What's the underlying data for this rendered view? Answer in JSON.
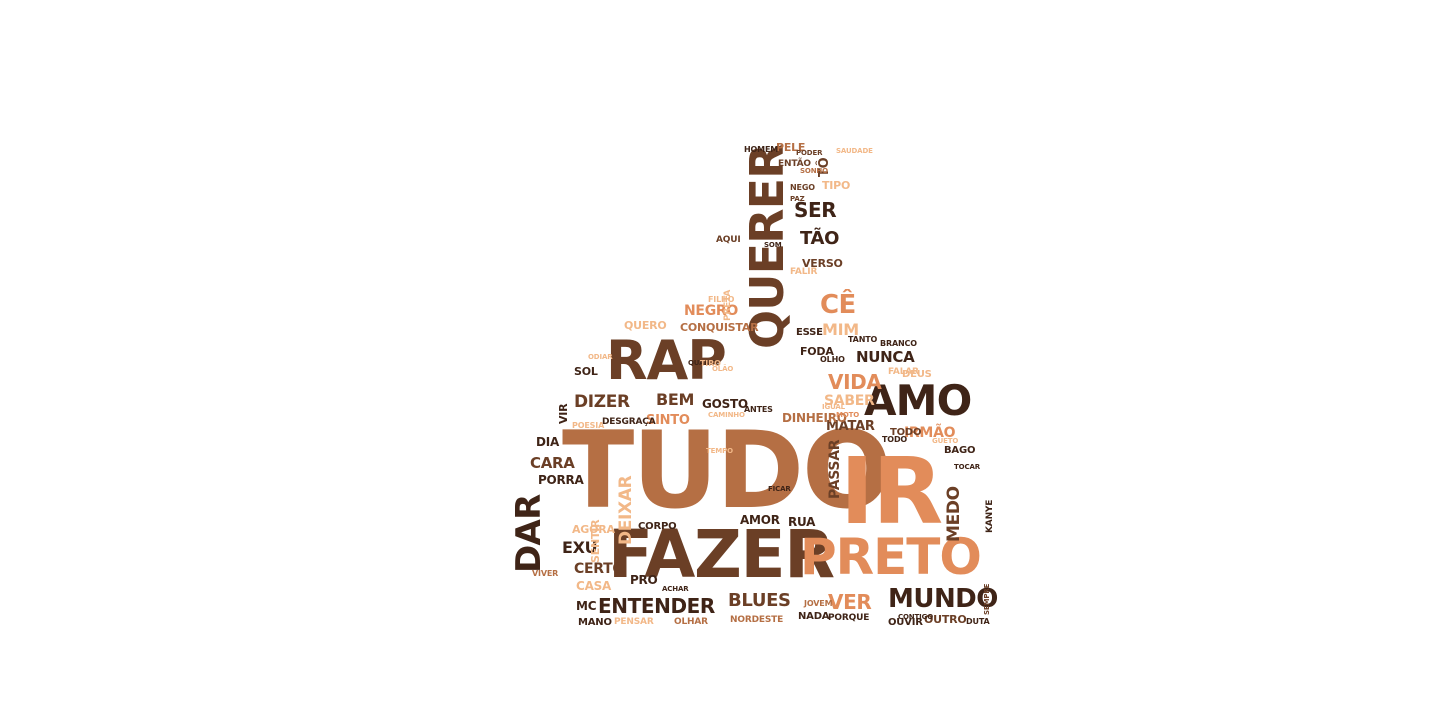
{
  "palette": {
    "dark": "#3f2417",
    "medium_dark": "#6b3f26",
    "medium": "#b56f44",
    "light": "#e28c5a",
    "pale": "#f2b888",
    "background": "#ffffff"
  },
  "words": [
    {
      "text": "TUDO",
      "color": "medium",
      "rotate": false
    },
    {
      "text": "iR",
      "color": "light",
      "rotate": false
    },
    {
      "text": "FAZER",
      "color": "medium_dark",
      "rotate": false
    },
    {
      "text": "PRETO",
      "color": "light",
      "rotate": false
    },
    {
      "text": "QUERER",
      "color": "medium_dark",
      "rotate": true
    },
    {
      "text": "RAP",
      "color": "medium_dark",
      "rotate": false
    },
    {
      "text": "AMO",
      "color": "dark",
      "rotate": false
    },
    {
      "text": "DAR",
      "color": "dark",
      "rotate": true
    },
    {
      "text": "MUNDO",
      "color": "dark",
      "rotate": false
    },
    {
      "text": "ENTENDER",
      "color": "dark",
      "rotate": false
    },
    {
      "text": "BLUES",
      "color": "medium_dark",
      "rotate": false
    },
    {
      "text": "VER",
      "color": "light",
      "rotate": false
    },
    {
      "text": "EXU",
      "color": "dark",
      "rotate": false
    },
    {
      "text": "CERTO",
      "color": "medium_dark",
      "rotate": false
    },
    {
      "text": "DIZER",
      "color": "medium_dark",
      "rotate": false
    },
    {
      "text": "BEM",
      "color": "medium_dark",
      "rotate": false
    },
    {
      "text": "CÊ",
      "color": "light",
      "rotate": false
    },
    {
      "text": "VIDA",
      "color": "light",
      "rotate": false
    },
    {
      "text": "MIM",
      "color": "pale",
      "rotate": false
    },
    {
      "text": "SER",
      "color": "dark",
      "rotate": false
    },
    {
      "text": "TÃO",
      "color": "dark",
      "rotate": false
    },
    {
      "text": "NUNCA",
      "color": "dark",
      "rotate": false
    },
    {
      "text": "SABER",
      "color": "pale",
      "rotate": false
    },
    {
      "text": "IRMÃO",
      "color": "light",
      "rotate": false
    },
    {
      "text": "MATAR",
      "color": "medium_dark",
      "rotate": false
    },
    {
      "text": "DINHEIRO",
      "color": "medium",
      "rotate": false
    },
    {
      "text": "SINTO",
      "color": "light",
      "rotate": false
    },
    {
      "text": "GOSTO",
      "color": "dark",
      "rotate": false
    },
    {
      "text": "NEGRO",
      "color": "light",
      "rotate": false
    },
    {
      "text": "CARA",
      "color": "medium_dark",
      "rotate": false
    },
    {
      "text": "PORRA",
      "color": "dark",
      "rotate": false
    },
    {
      "text": "DEIXAR",
      "color": "pale",
      "rotate": true
    },
    {
      "text": "MEDO",
      "color": "medium_dark",
      "rotate": true
    },
    {
      "text": "PASSAR",
      "color": "medium_dark",
      "rotate": true
    },
    {
      "text": "AMOR",
      "color": "dark",
      "rotate": false
    },
    {
      "text": "RUA",
      "color": "dark",
      "rotate": false
    },
    {
      "text": "OUTRO",
      "color": "medium_dark",
      "rotate": false
    },
    {
      "text": "CASA",
      "color": "pale",
      "rotate": false
    },
    {
      "text": "PRO",
      "color": "dark",
      "rotate": false
    },
    {
      "text": "MC",
      "color": "dark",
      "rotate": false
    },
    {
      "text": "FODA",
      "color": "dark",
      "rotate": false
    },
    {
      "text": "ESSE",
      "color": "dark",
      "rotate": false
    },
    {
      "text": "PELE",
      "color": "medium",
      "rotate": false
    },
    {
      "text": "TÔ",
      "color": "medium_dark",
      "rotate": true
    },
    {
      "text": "TIPO",
      "color": "pale",
      "rotate": false
    },
    {
      "text": "VERSO",
      "color": "medium_dark",
      "rotate": false
    },
    {
      "text": "FALIR",
      "color": "pale",
      "rotate": false
    },
    {
      "text": "DIA",
      "color": "dark",
      "rotate": false
    },
    {
      "text": "SOL",
      "color": "dark",
      "rotate": false
    },
    {
      "text": "VIR",
      "color": "dark",
      "rotate": true
    },
    {
      "text": "SENTIR",
      "color": "pale",
      "rotate": true
    },
    {
      "text": "AGORA",
      "color": "pale",
      "rotate": false
    },
    {
      "text": "CORPO",
      "color": "dark",
      "rotate": false
    },
    {
      "text": "TODO",
      "color": "medium_dark",
      "rotate": false
    },
    {
      "text": "DEUS",
      "color": "pale",
      "rotate": false
    },
    {
      "text": "BAGO",
      "color": "dark",
      "rotate": false
    },
    {
      "text": "QUERO",
      "color": "pale",
      "rotate": false
    },
    {
      "text": "CONQUISTAR",
      "color": "medium",
      "rotate": false
    },
    {
      "text": "AQUI",
      "color": "medium_dark",
      "rotate": false
    },
    {
      "text": "ENTÃO",
      "color": "medium_dark",
      "rotate": false
    },
    {
      "text": "HOMEM",
      "color": "dark",
      "rotate": false
    },
    {
      "text": "NEGO",
      "color": "medium_dark",
      "rotate": false
    },
    {
      "text": "MANO",
      "color": "dark",
      "rotate": false
    },
    {
      "text": "NADA",
      "color": "dark",
      "rotate": false
    },
    {
      "text": "OUVIR",
      "color": "dark",
      "rotate": false
    },
    {
      "text": "PORQUE",
      "color": "dark",
      "rotate": false
    },
    {
      "text": "NORDESTE",
      "color": "medium",
      "rotate": false
    },
    {
      "text": "KANYE",
      "color": "dark",
      "rotate": true
    },
    {
      "text": "PENSAR",
      "color": "pale",
      "rotate": false
    },
    {
      "text": "OLHAR",
      "color": "medium",
      "rotate": false
    },
    {
      "text": "DESGRAÇA",
      "color": "dark",
      "rotate": false
    },
    {
      "text": "FALAR",
      "color": "pale",
      "rotate": false
    },
    {
      "text": "ANTES",
      "color": "dark",
      "rotate": false
    },
    {
      "text": "CONTIGO",
      "color": "dark",
      "rotate": false
    },
    {
      "text": "TODO",
      "color": "dark",
      "rotate": false
    },
    {
      "text": "JOVEM",
      "color": "medium",
      "rotate": false
    },
    {
      "text": "DUTA",
      "color": "dark",
      "rotate": false
    },
    {
      "text": "PRETA",
      "color": "pale",
      "rotate": true
    },
    {
      "text": "FILHO",
      "color": "pale",
      "rotate": false
    },
    {
      "text": "TANTO",
      "color": "dark",
      "rotate": false
    },
    {
      "text": "OLHO",
      "color": "dark",
      "rotate": false
    },
    {
      "text": "BRANCO",
      "color": "dark",
      "rotate": false
    },
    {
      "text": "VIVER",
      "color": "medium",
      "rotate": false
    },
    {
      "text": "POESIA",
      "color": "pale",
      "rotate": false
    },
    {
      "text": "SAUDADE",
      "color": "pale",
      "rotate": false
    },
    {
      "text": "SONHO",
      "color": "medium",
      "rotate": false
    },
    {
      "text": "PAZ",
      "color": "medium_dark",
      "rotate": false
    },
    {
      "text": "CAMINHO",
      "color": "pale",
      "rotate": false
    },
    {
      "text": "ACHAR",
      "color": "dark",
      "rotate": false
    },
    {
      "text": "SEMPRE",
      "color": "medium_dark",
      "rotate": true
    },
    {
      "text": "TEMPO",
      "color": "pale",
      "rotate": false
    },
    {
      "text": "IGUAL",
      "color": "pale",
      "rotate": false
    },
    {
      "text": "FICAR",
      "color": "dark",
      "rotate": false
    },
    {
      "text": "PODER",
      "color": "medium_dark",
      "rotate": false
    },
    {
      "text": "SOM",
      "color": "dark",
      "rotate": false
    },
    {
      "text": "ODIAR",
      "color": "pale",
      "rotate": false
    },
    {
      "text": "MOTO",
      "color": "light",
      "rotate": false
    },
    {
      "text": "GUETO",
      "color": "pale",
      "rotate": false
    },
    {
      "text": "TOCAR",
      "color": "dark",
      "rotate": false
    },
    {
      "text": "OLÃO",
      "color": "pale",
      "rotate": false
    },
    {
      "text": "QUANTO",
      "color": "dark",
      "rotate": false
    },
    {
      "text": "TIRO",
      "color": "pale",
      "rotate": false
    }
  ]
}
